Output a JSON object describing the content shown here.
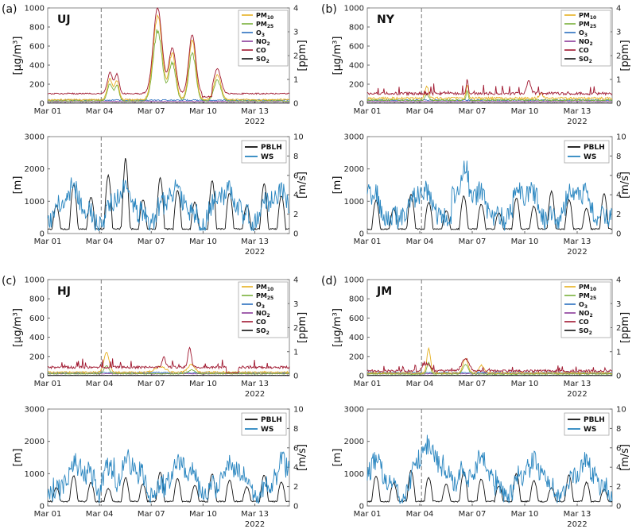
{
  "chart_data": [
    {
      "type": "line",
      "panel": "(a)",
      "site": "UJ",
      "ylabel_left": "[μg/m³]",
      "ylabel_right": "[ppm]",
      "ylim_left": [
        0,
        1000
      ],
      "ylim_right": [
        0,
        4
      ],
      "yticks_left": [
        "0",
        "200",
        "400",
        "600",
        "800",
        "1000"
      ],
      "yticks_right": [
        "0",
        "1",
        "2",
        "3",
        "4"
      ],
      "xticks": [
        "Mar 01",
        "Mar 04",
        "Mar 07",
        "Mar 10",
        "Mar 13"
      ],
      "xyear": "2022",
      "legend": [
        "PM10",
        "PM25",
        "O3",
        "NO2",
        "CO",
        "SO2"
      ],
      "profile": "uj"
    },
    {
      "type": "line",
      "panel": "",
      "site": "",
      "ylabel_left": "[m]",
      "ylabel_right": "[m/s]",
      "ylim_left": [
        0,
        3000
      ],
      "ylim_right": [
        0,
        10
      ],
      "yticks_left": [
        "0",
        "1000",
        "2000",
        "3000"
      ],
      "yticks_right": [
        "0",
        "2",
        "4",
        "6",
        "8",
        "10"
      ],
      "xticks": [
        "Mar 01",
        "Mar 04",
        "Mar 07",
        "Mar 10",
        "Mar 13"
      ],
      "xyear": "2022",
      "legend": [
        "PBLH",
        "WS"
      ],
      "profile": "uj"
    },
    {
      "type": "line",
      "panel": "(b)",
      "site": "NY",
      "ylabel_left": "[μg/m³]",
      "ylabel_right": "[ppm]",
      "ylim_left": [
        0,
        1000
      ],
      "ylim_right": [
        0,
        4
      ],
      "yticks_left": [
        "0",
        "200",
        "400",
        "600",
        "800",
        "1000"
      ],
      "yticks_right": [
        "0",
        "1",
        "2",
        "3",
        "4"
      ],
      "xticks": [
        "Mar 01",
        "Mar 04",
        "Mar 07",
        "Mar 10",
        "Mar 13"
      ],
      "xyear": "2022",
      "legend": [
        "PM10",
        "PM25",
        "O3",
        "NO2",
        "CO",
        "SO2"
      ],
      "profile": "ny"
    },
    {
      "type": "line",
      "panel": "",
      "site": "",
      "ylabel_left": "[m]",
      "ylabel_right": "[m/s]",
      "ylim_left": [
        0,
        3000
      ],
      "ylim_right": [
        0,
        10
      ],
      "yticks_left": [
        "0",
        "1000",
        "2000",
        "3000"
      ],
      "yticks_right": [
        "0",
        "2",
        "4",
        "6",
        "8",
        "10"
      ],
      "xticks": [
        "Mar 01",
        "Mar 04",
        "Mar 07",
        "Mar 10",
        "Mar 13"
      ],
      "xyear": "2022",
      "legend": [
        "PBLH",
        "WS"
      ],
      "profile": "ny"
    },
    {
      "type": "line",
      "panel": "(c)",
      "site": "HJ",
      "ylabel_left": "[μg/m³]",
      "ylabel_right": "[ppm]",
      "ylim_left": [
        0,
        1000
      ],
      "ylim_right": [
        0,
        4
      ],
      "yticks_left": [
        "0",
        "200",
        "400",
        "600",
        "800",
        "1000"
      ],
      "yticks_right": [
        "0",
        "1",
        "2",
        "3",
        "4"
      ],
      "xticks": [
        "Mar 01",
        "Mar 04",
        "Mar 07",
        "Mar 10",
        "Mar 13"
      ],
      "xyear": "2022",
      "legend": [
        "PM10",
        "PM25",
        "O3",
        "NO2",
        "CO",
        "SO2"
      ],
      "profile": "hj"
    },
    {
      "type": "line",
      "panel": "",
      "site": "",
      "ylabel_left": "[m]",
      "ylabel_right": "[m/s]",
      "ylim_left": [
        0,
        3000
      ],
      "ylim_right": [
        0,
        10
      ],
      "yticks_left": [
        "0",
        "1000",
        "2000",
        "3000"
      ],
      "yticks_right": [
        "0",
        "2",
        "4",
        "6",
        "8",
        "10"
      ],
      "xticks": [
        "Mar 01",
        "Mar 04",
        "Mar 07",
        "Mar 10",
        "Mar 13"
      ],
      "xyear": "2022",
      "legend": [
        "PBLH",
        "WS"
      ],
      "profile": "hj"
    },
    {
      "type": "line",
      "panel": "(d)",
      "site": "JM",
      "ylabel_left": "[μg/m³]",
      "ylabel_right": "[ppm]",
      "ylim_left": [
        0,
        1000
      ],
      "ylim_right": [
        0,
        4
      ],
      "yticks_left": [
        "0",
        "200",
        "400",
        "600",
        "800",
        "1000"
      ],
      "yticks_right": [
        "0",
        "1",
        "2",
        "3",
        "4"
      ],
      "xticks": [
        "Mar 01",
        "Mar 04",
        "Mar 07",
        "Mar 10",
        "Mar 13"
      ],
      "xyear": "2022",
      "legend": [
        "PM10",
        "PM25",
        "O3",
        "NO2",
        "CO",
        "SO2"
      ],
      "profile": "jm"
    },
    {
      "type": "line",
      "panel": "",
      "site": "",
      "ylabel_left": "[m]",
      "ylabel_right": "[m/s]",
      "ylim_left": [
        0,
        3000
      ],
      "ylim_right": [
        0,
        10
      ],
      "yticks_left": [
        "0",
        "1000",
        "2000",
        "3000"
      ],
      "yticks_right": [
        "0",
        "2",
        "4",
        "6",
        "8",
        "10"
      ],
      "xticks": [
        "Mar 01",
        "Mar 04",
        "Mar 07",
        "Mar 10",
        "Mar 13"
      ],
      "xyear": "2022",
      "legend": [
        "PBLH",
        "WS"
      ],
      "profile": "jm"
    }
  ],
  "colors": {
    "PM10": "#e6b020",
    "PM25": "#7ab03a",
    "O3": "#2a6fc0",
    "NO2": "#8a3a9a",
    "CO": "#a01830",
    "SO2": "#111111",
    "PBLH": "#111111",
    "WS": "#2a86c0",
    "event": "#777777"
  }
}
